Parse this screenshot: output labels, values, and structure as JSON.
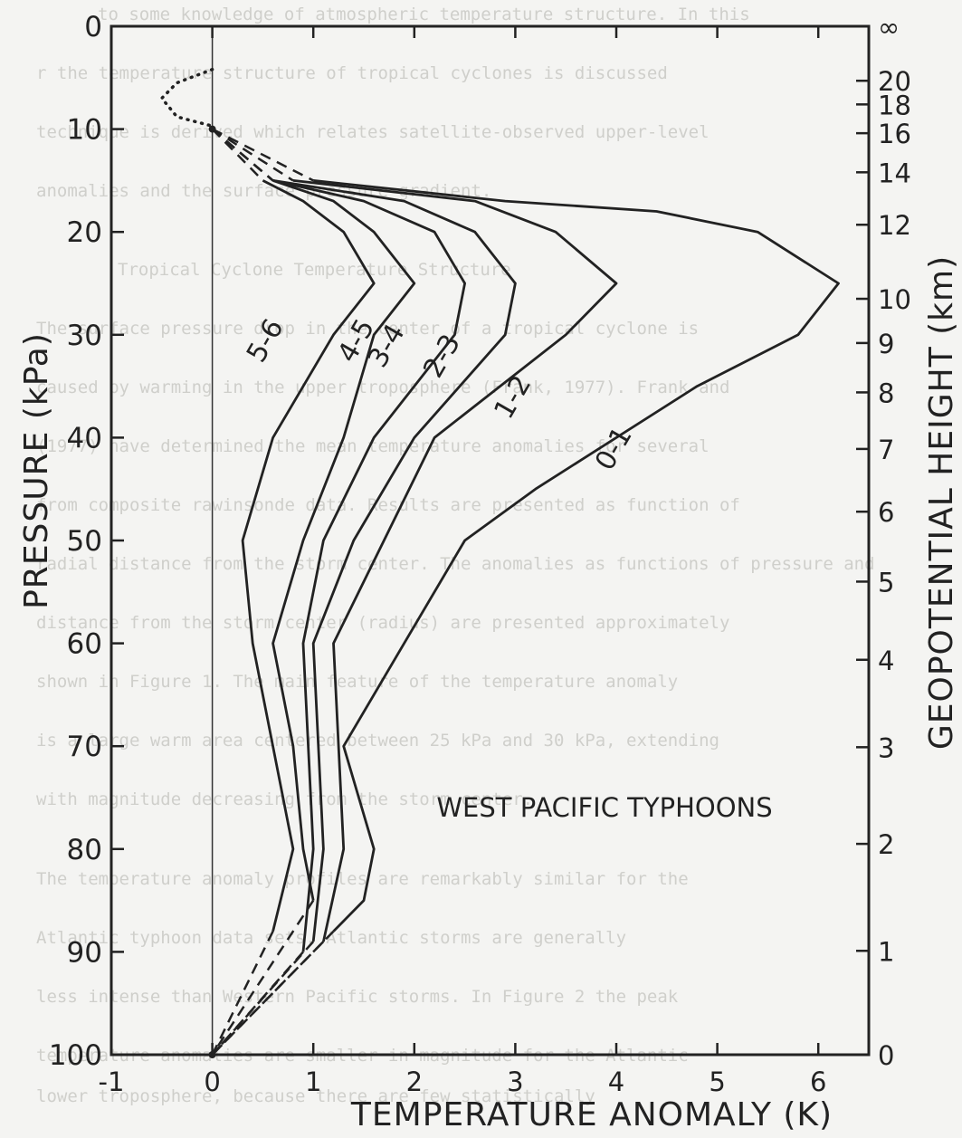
{
  "chart_data": {
    "type": "line",
    "title": "WEST PACIFIC TYPHOONS",
    "xlabel": "TEMPERATURE ANOMALY (K)",
    "ylabel": "PRESSURE (kPa)",
    "ylabel_right": "GEOPOTENTIAL HEIGHT (km)",
    "xlim": [
      -1,
      6.5
    ],
    "ylim": [
      100,
      0
    ],
    "x_ticks": [
      "-1",
      "0",
      "1",
      "2",
      "3",
      "4",
      "5",
      "6"
    ],
    "y_ticks": [
      "0",
      "10",
      "20",
      "30",
      "40",
      "50",
      "60",
      "70",
      "80",
      "90",
      "100"
    ],
    "height_ticks": [
      {
        "label": "∞",
        "p": 0
      },
      {
        "label": "20",
        "p": 5.3
      },
      {
        "label": "18",
        "p": 7.6
      },
      {
        "label": "16",
        "p": 10.4
      },
      {
        "label": "14",
        "p": 14.2
      },
      {
        "label": "12",
        "p": 19.3
      },
      {
        "label": "10",
        "p": 26.5
      },
      {
        "label": "9",
        "p": 30.8
      },
      {
        "label": "8",
        "p": 35.6
      },
      {
        "label": "7",
        "p": 41.1
      },
      {
        "label": "6",
        "p": 47.2
      },
      {
        "label": "5",
        "p": 54.0
      },
      {
        "label": "4",
        "p": 61.6
      },
      {
        "label": "3",
        "p": 70.1
      },
      {
        "label": "2",
        "p": 79.5
      },
      {
        "label": "1",
        "p": 89.9
      },
      {
        "label": "0",
        "p": 101.3
      }
    ],
    "dotted_curve": {
      "x": [
        0,
        -0.35,
        -0.5,
        -0.35,
        0
      ],
      "y": [
        4.2,
        5.5,
        7.0,
        8.8,
        9.7
      ]
    },
    "series": [
      {
        "name": "0-1",
        "top_dashed": {
          "x": [
            0,
            1.0
          ],
          "y": [
            10,
            15
          ]
        },
        "solid": {
          "x": [
            1.0,
            2.9,
            4.4,
            5.4,
            6.2,
            5.8,
            4.8,
            3.2,
            2.5,
            1.9,
            1.3,
            1.6,
            1.5,
            1.2
          ],
          "y": [
            15,
            17,
            18,
            20,
            25,
            30,
            35,
            45,
            50,
            60,
            70,
            80,
            85,
            88
          ]
        },
        "bottom_dashed": {
          "x": [
            1.2,
            0
          ],
          "y": [
            88,
            100
          ]
        }
      },
      {
        "name": "1-2",
        "top_dashed": {
          "x": [
            0,
            0.8
          ],
          "y": [
            10,
            15
          ]
        },
        "solid": {
          "x": [
            0.8,
            2.6,
            3.4,
            4.0,
            3.5,
            2.2,
            1.7,
            1.2,
            1.3,
            1.1
          ],
          "y": [
            15,
            17,
            20,
            25,
            30,
            40,
            50,
            60,
            80,
            89
          ]
        },
        "bottom_dashed": {
          "x": [
            1.1,
            0
          ],
          "y": [
            89,
            100
          ]
        }
      },
      {
        "name": "2-3",
        "top_dashed": {
          "x": [
            0,
            0.6
          ],
          "y": [
            10,
            15
          ]
        },
        "solid": {
          "x": [
            0.6,
            1.9,
            2.6,
            3.0,
            2.9,
            2.0,
            1.4,
            1.0,
            1.1,
            1.0
          ],
          "y": [
            15,
            17,
            20,
            25,
            30,
            40,
            50,
            60,
            80,
            89
          ]
        },
        "bottom_dashed": {
          "x": [
            1.0,
            0
          ],
          "y": [
            89,
            100
          ]
        }
      },
      {
        "name": "3-4",
        "top_dashed": {
          "x": [
            0,
            0.6
          ],
          "y": [
            10,
            15
          ]
        },
        "solid": {
          "x": [
            0.6,
            1.5,
            2.2,
            2.5,
            2.4,
            1.6,
            1.1,
            0.9,
            1.0,
            0.9
          ],
          "y": [
            15,
            17,
            20,
            25,
            30,
            40,
            50,
            60,
            80,
            90
          ]
        },
        "bottom_dashed": {
          "x": [
            0.9,
            0
          ],
          "y": [
            90,
            100
          ]
        }
      },
      {
        "name": "4-5",
        "top_dashed": {
          "x": [
            0,
            0.6
          ],
          "y": [
            10,
            15
          ]
        },
        "solid": {
          "x": [
            0.6,
            1.2,
            1.6,
            2.0,
            1.6,
            1.3,
            0.9,
            0.6,
            0.8,
            0.9,
            1.0
          ],
          "y": [
            15,
            17,
            20,
            25,
            30,
            40,
            50,
            60,
            70,
            80,
            85
          ]
        },
        "bottom_dashed": {
          "x": [
            1.0,
            0
          ],
          "y": [
            85,
            100
          ]
        }
      },
      {
        "name": "5-6",
        "top_dashed": {
          "x": [
            0,
            0.5
          ],
          "y": [
            10,
            15
          ]
        },
        "solid": {
          "x": [
            0.5,
            0.9,
            1.3,
            1.6,
            1.2,
            0.6,
            0.3,
            0.4,
            0.8,
            0.6
          ],
          "y": [
            15,
            17,
            20,
            25,
            30,
            40,
            50,
            60,
            80,
            88
          ]
        },
        "bottom_dashed": {
          "x": [
            0.6,
            0
          ],
          "y": [
            88,
            100
          ]
        }
      }
    ],
    "background_text": [
      "to some knowledge of atmospheric temperature structure. In this",
      "r the temperature structure of tropical cyclones is discussed",
      "technique is derived which relates satellite-observed upper-level",
      "anomalies and the surface pressure gradient.",
      "Tropical Cyclone Temperature Structure",
      "The surface pressure drop in the center of a tropical cyclone is",
      "caused by warming in the upper troposphere (Frank, 1977). Frank and",
      "(1977) have determined the mean temperature anomalies for several",
      "from composite rawinsonde data. Results are presented as function of",
      "radial distance from the storm center. The anomalies as functions of pressure and",
      "distance from the storm center (radius) are presented approximately",
      "shown in Figure 1. The main feature of the temperature anomaly",
      "is a large warm area centered between 25 kPa and 30 kPa, extending",
      "with magnitude decreasing from the storm center.",
      "The temperature anomaly profiles are remarkably similar for the",
      "Atlantic typhoon data sets. Atlantic storms are generally",
      "less intense than Western Pacific storms. In Figure 2 the peak",
      "temperature anomalies are smaller in magnitude for the Atlantic",
      "lower troposphere, because there are few statistically"
    ]
  }
}
